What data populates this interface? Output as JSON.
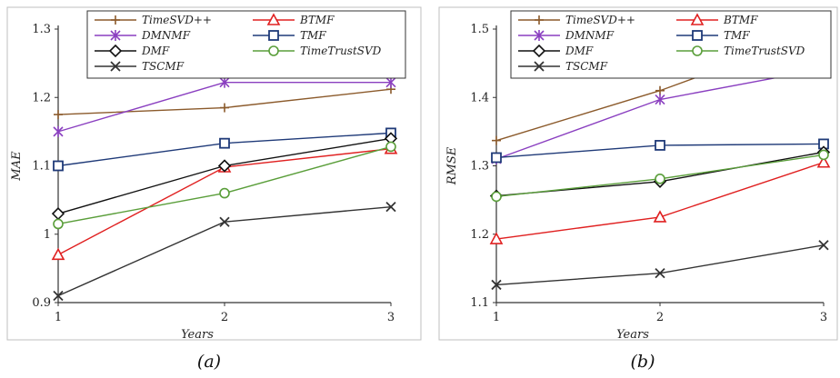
{
  "chart_data": [
    {
      "type": "line",
      "caption": "(a)",
      "xlabel": "Years",
      "ylabel": "MAE",
      "x": [
        1,
        2,
        3
      ],
      "xticks": [
        "1",
        "2",
        "3"
      ],
      "ylim": [
        0.9,
        1.3
      ],
      "yticks": [
        "0.9",
        "1",
        "1.1",
        "1.2",
        "1.3"
      ],
      "ytick_values": [
        0.9,
        1.0,
        1.1,
        1.2,
        1.3
      ],
      "grid": false,
      "legend": "top",
      "series": [
        {
          "name": "TimeSVD++",
          "values": [
            1.175,
            1.185,
            1.212
          ],
          "color": "#8B5A2B",
          "marker": "plus"
        },
        {
          "name": "BTMF",
          "values": [
            0.97,
            1.098,
            1.125
          ],
          "color": "#E02020",
          "marker": "triangle"
        },
        {
          "name": "DMNMF",
          "values": [
            1.15,
            1.222,
            1.222
          ],
          "color": "#8A3FC0",
          "marker": "star"
        },
        {
          "name": "TMF",
          "values": [
            1.1,
            1.133,
            1.148
          ],
          "color": "#1F3A78",
          "marker": "square"
        },
        {
          "name": "DMF",
          "values": [
            1.03,
            1.1,
            1.14
          ],
          "color": "#111111",
          "marker": "diamond"
        },
        {
          "name": "TimeTrustSVD",
          "values": [
            1.015,
            1.06,
            1.128
          ],
          "color": "#5A9E3A",
          "marker": "circle"
        },
        {
          "name": "TSCMF",
          "values": [
            0.91,
            1.018,
            1.04
          ],
          "color": "#333333",
          "marker": "x"
        }
      ]
    },
    {
      "type": "line",
      "caption": "(b)",
      "xlabel": "Years",
      "ylabel": "RMSE",
      "x": [
        1,
        2,
        3
      ],
      "xticks": [
        "1",
        "2",
        "3"
      ],
      "ylim": [
        1.1,
        1.5
      ],
      "yticks": [
        "1.1",
        "1.2",
        "1.3",
        "1.4",
        "1.5"
      ],
      "ytick_values": [
        1.1,
        1.2,
        1.3,
        1.4,
        1.5
      ],
      "grid": false,
      "legend": "top",
      "series": [
        {
          "name": "TimeSVD++",
          "values": [
            1.337,
            1.41,
            1.497
          ],
          "color": "#8B5A2B",
          "marker": "plus"
        },
        {
          "name": "BTMF",
          "values": [
            1.193,
            1.225,
            1.305
          ],
          "color": "#E02020",
          "marker": "triangle"
        },
        {
          "name": "DMNMF",
          "values": [
            1.31,
            1.397,
            1.442
          ],
          "color": "#8A3FC0",
          "marker": "star"
        },
        {
          "name": "TMF",
          "values": [
            1.312,
            1.33,
            1.332
          ],
          "color": "#1F3A78",
          "marker": "square"
        },
        {
          "name": "DMF",
          "values": [
            1.256,
            1.277,
            1.32
          ],
          "color": "#111111",
          "marker": "diamond"
        },
        {
          "name": "TimeTrustSVD",
          "values": [
            1.255,
            1.281,
            1.316
          ],
          "color": "#5A9E3A",
          "marker": "circle"
        },
        {
          "name": "TSCMF",
          "values": [
            1.126,
            1.143,
            1.184
          ],
          "color": "#333333",
          "marker": "x"
        }
      ]
    }
  ]
}
